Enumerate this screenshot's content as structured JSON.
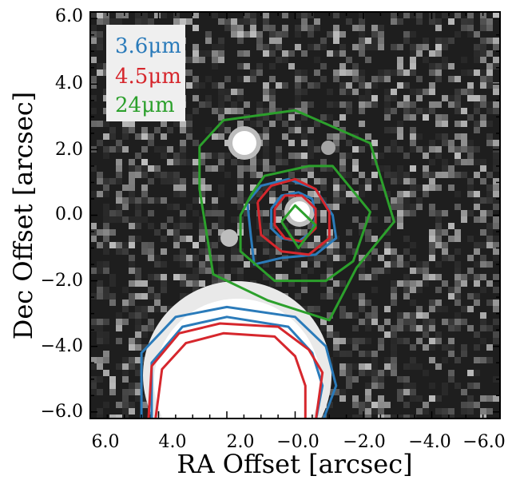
{
  "figure": {
    "xlabel": "RA Offset [arcsec]",
    "ylabel": "Dec Offset [arcsec]",
    "x_ticks": [
      "6.0",
      "4.0",
      "2.0",
      "−0.0",
      "−2.0",
      "−4.0",
      "−6.0"
    ],
    "y_ticks": [
      "6.0",
      "4.0",
      "2.0",
      "0.0",
      "−2.0",
      "−4.0",
      "−6.0"
    ],
    "legend": [
      {
        "label": "3.6μm",
        "color": "#2b7bba"
      },
      {
        "label": "4.5μm",
        "color": "#d6272d"
      },
      {
        "label": "24μm",
        "color": "#2ca02c"
      }
    ]
  },
  "chart_data": {
    "type": "image with contours",
    "x_axis": {
      "label": "RA Offset [arcsec]",
      "range": [
        6.0,
        -6.0
      ],
      "inverted": true
    },
    "y_axis": {
      "label": "Dec Offset [arcsec]",
      "range": [
        -6.2,
        6.2
      ]
    },
    "series": [
      {
        "name": "3.6μm",
        "color": "#2b7bba",
        "contours": [
          [
            [
              1.4,
              0.4
            ],
            [
              1.0,
              0.9
            ],
            [
              0.2,
              1.1
            ],
            [
              -0.6,
              0.8
            ],
            [
              -1.1,
              0.0
            ],
            [
              -1.2,
              -0.7
            ],
            [
              -0.6,
              -1.2
            ],
            [
              0.4,
              -1.3
            ],
            [
              1.2,
              -1.5
            ],
            [
              1.3,
              -0.6
            ],
            [
              1.4,
              0.4
            ]
          ],
          [
            [
              0.7,
              0.2
            ],
            [
              0.4,
              0.6
            ],
            [
              -0.1,
              0.7
            ],
            [
              -0.5,
              0.5
            ],
            [
              -0.6,
              0.0
            ],
            [
              -0.5,
              -0.5
            ],
            [
              -0.1,
              -0.8
            ],
            [
              0.4,
              -0.7
            ],
            [
              0.7,
              -0.4
            ],
            [
              0.7,
              0.2
            ]
          ],
          [
            [
              4.5,
              -6.3
            ],
            [
              4.5,
              -4.2
            ],
            [
              3.5,
              -3.1
            ],
            [
              2.0,
              -2.8
            ],
            [
              0.0,
              -3.1
            ],
            [
              -0.9,
              -4.0
            ],
            [
              -1.2,
              -5.2
            ],
            [
              -0.8,
              -6.3
            ]
          ],
          [
            [
              4.2,
              -6.3
            ],
            [
              4.2,
              -4.5
            ],
            [
              3.3,
              -3.4
            ],
            [
              2.0,
              -3.1
            ],
            [
              0.2,
              -3.4
            ],
            [
              -0.5,
              -4.2
            ],
            [
              -0.8,
              -5.2
            ],
            [
              -0.6,
              -6.3
            ]
          ]
        ]
      },
      {
        "name": "4.5μm",
        "color": "#d6272d",
        "contours": [
          [
            [
              1.1,
              0.4
            ],
            [
              0.7,
              0.9
            ],
            [
              0.0,
              1.1
            ],
            [
              -0.6,
              0.8
            ],
            [
              -1.0,
              0.1
            ],
            [
              -1.0,
              -0.7
            ],
            [
              -0.4,
              -1.2
            ],
            [
              0.4,
              -1.1
            ],
            [
              1.0,
              -0.6
            ],
            [
              1.1,
              0.4
            ]
          ],
          [
            [
              0.6,
              0.2
            ],
            [
              0.3,
              0.6
            ],
            [
              -0.2,
              0.6
            ],
            [
              -0.6,
              0.2
            ],
            [
              -0.6,
              -0.4
            ],
            [
              -0.2,
              -0.8
            ],
            [
              0.3,
              -0.7
            ],
            [
              0.6,
              -0.3
            ],
            [
              0.6,
              0.2
            ]
          ],
          [
            [
              4.3,
              -6.3
            ],
            [
              4.2,
              -4.6
            ],
            [
              3.4,
              -3.6
            ],
            [
              2.2,
              -3.3
            ],
            [
              0.5,
              -3.4
            ],
            [
              -0.4,
              -4.1
            ],
            [
              -0.8,
              -4.8
            ],
            [
              -0.6,
              -6.3
            ]
          ],
          [
            [
              4.1,
              -6.3
            ],
            [
              3.9,
              -4.7
            ],
            [
              3.2,
              -3.9
            ],
            [
              2.1,
              -3.6
            ],
            [
              0.6,
              -3.7
            ],
            [
              0.0,
              -4.3
            ],
            [
              -0.3,
              -5.2
            ],
            [
              -0.3,
              -6.3
            ]
          ]
        ]
      },
      {
        "name": "24μm",
        "color": "#2ca02c",
        "contours": [
          [
            [
              2.8,
              2.1
            ],
            [
              2.1,
              2.9
            ],
            [
              0.0,
              3.2
            ],
            [
              -2.2,
              2.2
            ],
            [
              -2.9,
              -0.2
            ],
            [
              -1.8,
              -1.6
            ],
            [
              -1.0,
              -3.2
            ],
            [
              0.8,
              -2.6
            ],
            [
              2.4,
              -1.8
            ],
            [
              2.8,
              0.8
            ],
            [
              2.8,
              2.1
            ]
          ],
          [
            [
              1.3,
              0.6
            ],
            [
              0.9,
              1.2
            ],
            [
              -0.4,
              1.5
            ],
            [
              -1.1,
              1.5
            ],
            [
              -2.2,
              0.1
            ],
            [
              -1.7,
              -1.4
            ],
            [
              -0.9,
              -2.0
            ],
            [
              0.6,
              -2.0
            ],
            [
              1.6,
              -1.1
            ],
            [
              1.6,
              0.0
            ],
            [
              1.3,
              0.6
            ]
          ],
          [
            [
              0.4,
              -0.2
            ],
            [
              0.0,
              0.3
            ],
            [
              -0.6,
              -0.3
            ],
            [
              -0.1,
              -1.0
            ],
            [
              0.4,
              -0.2
            ]
          ]
        ]
      }
    ]
  }
}
